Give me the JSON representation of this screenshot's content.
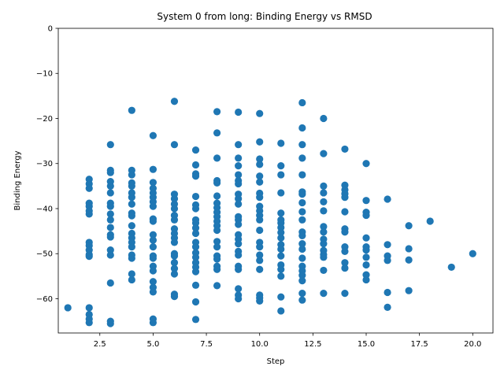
{
  "chart_data": {
    "type": "scatter",
    "title": "System 0 from long: Binding Energy vs RMSD",
    "xlabel": "Step",
    "ylabel": "Binding Energy",
    "xlim": [
      0.55,
      20.95
    ],
    "ylim": [
      -67.6,
      0
    ],
    "xticks": [
      2.5,
      5.0,
      7.5,
      10.0,
      12.5,
      15.0,
      17.5,
      20.0
    ],
    "xtick_labels": [
      "2.5",
      "5.0",
      "7.5",
      "10.0",
      "12.5",
      "15.0",
      "17.5",
      "20.0"
    ],
    "yticks": [
      0,
      -10,
      -20,
      -30,
      -40,
      -50,
      -60
    ],
    "ytick_labels": [
      "0",
      "−10",
      "−20",
      "−30",
      "−40",
      "−50",
      "−60"
    ],
    "grid": false,
    "color": "#1f77b4",
    "points": [
      [
        1,
        -62
      ],
      [
        2,
        -33.5
      ],
      [
        2,
        -34.5
      ],
      [
        2,
        -35.5
      ],
      [
        2,
        -38.8
      ],
      [
        2,
        -39.5
      ],
      [
        2,
        -40.5
      ],
      [
        2,
        -41.2
      ],
      [
        2,
        -47.5
      ],
      [
        2,
        -48.2
      ],
      [
        2,
        -49.2
      ],
      [
        2,
        -50.2
      ],
      [
        2,
        -50.6
      ],
      [
        2,
        -62
      ],
      [
        2,
        -63.5
      ],
      [
        2,
        -64.5
      ],
      [
        2,
        -65.3
      ],
      [
        3,
        -25.8
      ],
      [
        3,
        -31.5
      ],
      [
        3,
        -32
      ],
      [
        3,
        -34
      ],
      [
        3,
        -35
      ],
      [
        3,
        -36.5
      ],
      [
        3,
        -38.8
      ],
      [
        3,
        -39.5
      ],
      [
        3,
        -41.2
      ],
      [
        3,
        -42.5
      ],
      [
        3,
        -44.2
      ],
      [
        3,
        -45.8
      ],
      [
        3,
        -46.3
      ],
      [
        3,
        -49.2
      ],
      [
        3,
        -50.3
      ],
      [
        3,
        -56.5
      ],
      [
        3,
        -65
      ],
      [
        3,
        -65.5
      ],
      [
        4,
        -18.2
      ],
      [
        4,
        -31.5
      ],
      [
        4,
        -32.5
      ],
      [
        4,
        -34.3
      ],
      [
        4,
        -35
      ],
      [
        4,
        -36.5
      ],
      [
        4,
        -37.5
      ],
      [
        4,
        -39
      ],
      [
        4,
        -41
      ],
      [
        4,
        -41.6
      ],
      [
        4,
        -43.8
      ],
      [
        4,
        -45.5
      ],
      [
        4,
        -46.5
      ],
      [
        4,
        -47.5
      ],
      [
        4,
        -48.5
      ],
      [
        4,
        -50.3
      ],
      [
        4,
        -51
      ],
      [
        4,
        -54.5
      ],
      [
        4,
        -55.8
      ],
      [
        5,
        -23.8
      ],
      [
        5,
        -31.3
      ],
      [
        5,
        -34.2
      ],
      [
        5,
        -35.5
      ],
      [
        5,
        -36.5
      ],
      [
        5,
        -37.5
      ],
      [
        5,
        -38.5
      ],
      [
        5,
        -39.5
      ],
      [
        5,
        -42.3
      ],
      [
        5,
        -42.8
      ],
      [
        5,
        -45.8
      ],
      [
        5,
        -47
      ],
      [
        5,
        -48.5
      ],
      [
        5,
        -50.5
      ],
      [
        5,
        -51
      ],
      [
        5,
        -52.8
      ],
      [
        5,
        -53.8
      ],
      [
        5,
        -56.2
      ],
      [
        5,
        -57.5
      ],
      [
        5,
        -58.5
      ],
      [
        5,
        -64.5
      ],
      [
        5,
        -65.3
      ],
      [
        6,
        -16.2
      ],
      [
        6,
        -25.8
      ],
      [
        6,
        -36.8
      ],
      [
        6,
        -37.8
      ],
      [
        6,
        -39
      ],
      [
        6,
        -40
      ],
      [
        6,
        -41.5
      ],
      [
        6,
        -42.5
      ],
      [
        6,
        -44.5
      ],
      [
        6,
        -45.5
      ],
      [
        6,
        -46.5
      ],
      [
        6,
        -47.5
      ],
      [
        6,
        -50
      ],
      [
        6,
        -50.5
      ],
      [
        6,
        -52
      ],
      [
        6,
        -53.3
      ],
      [
        6,
        -54.5
      ],
      [
        6,
        -59
      ],
      [
        6,
        -59.5
      ],
      [
        7,
        -27
      ],
      [
        7,
        -30.3
      ],
      [
        7,
        -32.3
      ],
      [
        7,
        -32.8
      ],
      [
        7,
        -37.3
      ],
      [
        7,
        -39.2
      ],
      [
        7,
        -40
      ],
      [
        7,
        -42.5
      ],
      [
        7,
        -43.2
      ],
      [
        7,
        -44.3
      ],
      [
        7,
        -45.5
      ],
      [
        7,
        -47.5
      ],
      [
        7,
        -48.5
      ],
      [
        7,
        -49.8
      ],
      [
        7,
        -50.8
      ],
      [
        7,
        -52
      ],
      [
        7,
        -53
      ],
      [
        7,
        -54
      ],
      [
        7,
        -57
      ],
      [
        7,
        -60.7
      ],
      [
        7,
        -64.6
      ],
      [
        8,
        -18.5
      ],
      [
        8,
        -23.2
      ],
      [
        8,
        -28.8
      ],
      [
        8,
        -33.8
      ],
      [
        8,
        -34.3
      ],
      [
        8,
        -37.2
      ],
      [
        8,
        -38.8
      ],
      [
        8,
        -39.8
      ],
      [
        8,
        -40.8
      ],
      [
        8,
        -41.8
      ],
      [
        8,
        -42.8
      ],
      [
        8,
        -43.8
      ],
      [
        8,
        -44.8
      ],
      [
        8,
        -47.3
      ],
      [
        8,
        -48.5
      ],
      [
        8,
        -50.5
      ],
      [
        8,
        -51.2
      ],
      [
        8,
        -52.8
      ],
      [
        8,
        -53.5
      ],
      [
        8,
        -57.1
      ],
      [
        9,
        -18.6
      ],
      [
        9,
        -25.8
      ],
      [
        9,
        -28.8
      ],
      [
        9,
        -30.5
      ],
      [
        9,
        -32.5
      ],
      [
        9,
        -33.8
      ],
      [
        9,
        -34.5
      ],
      [
        9,
        -36.8
      ],
      [
        9,
        -37.8
      ],
      [
        9,
        -39
      ],
      [
        9,
        -41.8
      ],
      [
        9,
        -42.5
      ],
      [
        9,
        -43.5
      ],
      [
        9,
        -45.8
      ],
      [
        9,
        -46.8
      ],
      [
        9,
        -47.8
      ],
      [
        9,
        -49.5
      ],
      [
        9,
        -50.3
      ],
      [
        9,
        -52.8
      ],
      [
        9,
        -53.5
      ],
      [
        9,
        -57.8
      ],
      [
        9,
        -59.2
      ],
      [
        9,
        -60
      ],
      [
        10,
        -18.9
      ],
      [
        10,
        -25.2
      ],
      [
        10,
        -29
      ],
      [
        10,
        -30.2
      ],
      [
        10,
        -32.8
      ],
      [
        10,
        -34.1
      ],
      [
        10,
        -36.6
      ],
      [
        10,
        -37.5
      ],
      [
        10,
        -39.5
      ],
      [
        10,
        -40.5
      ],
      [
        10,
        -41.5
      ],
      [
        10,
        -42.5
      ],
      [
        10,
        -44.8
      ],
      [
        10,
        -47.5
      ],
      [
        10,
        -48.5
      ],
      [
        10,
        -50.3
      ],
      [
        10,
        -51.5
      ],
      [
        10,
        -53.5
      ],
      [
        10,
        -59.2
      ],
      [
        10,
        -59.8
      ],
      [
        10,
        -60.5
      ],
      [
        11,
        -25.5
      ],
      [
        11,
        -30.5
      ],
      [
        11,
        -32.5
      ],
      [
        11,
        -36.5
      ],
      [
        11,
        -41
      ],
      [
        11,
        -42.5
      ],
      [
        11,
        -43.2
      ],
      [
        11,
        -44.2
      ],
      [
        11,
        -45.3
      ],
      [
        11,
        -46.5
      ],
      [
        11,
        -48
      ],
      [
        11,
        -49
      ],
      [
        11,
        -50.5
      ],
      [
        11,
        -52.5
      ],
      [
        11,
        -53.5
      ],
      [
        11,
        -55
      ],
      [
        11,
        -59.6
      ],
      [
        11,
        -62.7
      ],
      [
        12,
        -16.5
      ],
      [
        12,
        -22.1
      ],
      [
        12,
        -25.8
      ],
      [
        12,
        -28.8
      ],
      [
        12,
        -32.5
      ],
      [
        12,
        -36.3
      ],
      [
        12,
        -36.8
      ],
      [
        12,
        -38.7
      ],
      [
        12,
        -40.7
      ],
      [
        12,
        -42.5
      ],
      [
        12,
        -45.2
      ],
      [
        12,
        -46
      ],
      [
        12,
        -47.8
      ],
      [
        12,
        -49
      ],
      [
        12,
        -51
      ],
      [
        12,
        -52.8
      ],
      [
        12,
        -53.8
      ],
      [
        12,
        -54.8
      ],
      [
        12,
        -56
      ],
      [
        12,
        -58.8
      ],
      [
        12,
        -60.3
      ],
      [
        13,
        -20
      ],
      [
        13,
        -27.8
      ],
      [
        13,
        -35
      ],
      [
        13,
        -36.5
      ],
      [
        13,
        -38.5
      ],
      [
        13,
        -40.5
      ],
      [
        13,
        -44
      ],
      [
        13,
        -45.2
      ],
      [
        13,
        -46.8
      ],
      [
        13,
        -47.8
      ],
      [
        13,
        -49.3
      ],
      [
        13,
        -50.2
      ],
      [
        13,
        -50.8
      ],
      [
        13,
        -53.7
      ],
      [
        13,
        -58.8
      ],
      [
        14,
        -26.8
      ],
      [
        14,
        -34.8
      ],
      [
        14,
        -35.8
      ],
      [
        14,
        -36.7
      ],
      [
        14,
        -37.5
      ],
      [
        14,
        -40.7
      ],
      [
        14,
        -44.5
      ],
      [
        14,
        -45.2
      ],
      [
        14,
        -48.5
      ],
      [
        14,
        -49.5
      ],
      [
        14,
        -52
      ],
      [
        14,
        -53.2
      ],
      [
        14,
        -58.8
      ],
      [
        15,
        -30
      ],
      [
        15,
        -38.2
      ],
      [
        15,
        -40.8
      ],
      [
        15,
        -41.5
      ],
      [
        15,
        -46.5
      ],
      [
        15,
        -48.5
      ],
      [
        15,
        -49.2
      ],
      [
        15,
        -50.8
      ],
      [
        15,
        -52.5
      ],
      [
        15,
        -54.7
      ],
      [
        15,
        -55.8
      ],
      [
        16,
        -37.9
      ],
      [
        16,
        -48
      ],
      [
        16,
        -50.5
      ],
      [
        16,
        -51.5
      ],
      [
        16,
        -58.6
      ],
      [
        16,
        -61.9
      ],
      [
        17,
        -43.8
      ],
      [
        17,
        -48.9
      ],
      [
        17,
        -51.4
      ],
      [
        17,
        -58.2
      ],
      [
        18,
        -42.8
      ],
      [
        19,
        -53
      ],
      [
        20,
        -50
      ]
    ]
  }
}
